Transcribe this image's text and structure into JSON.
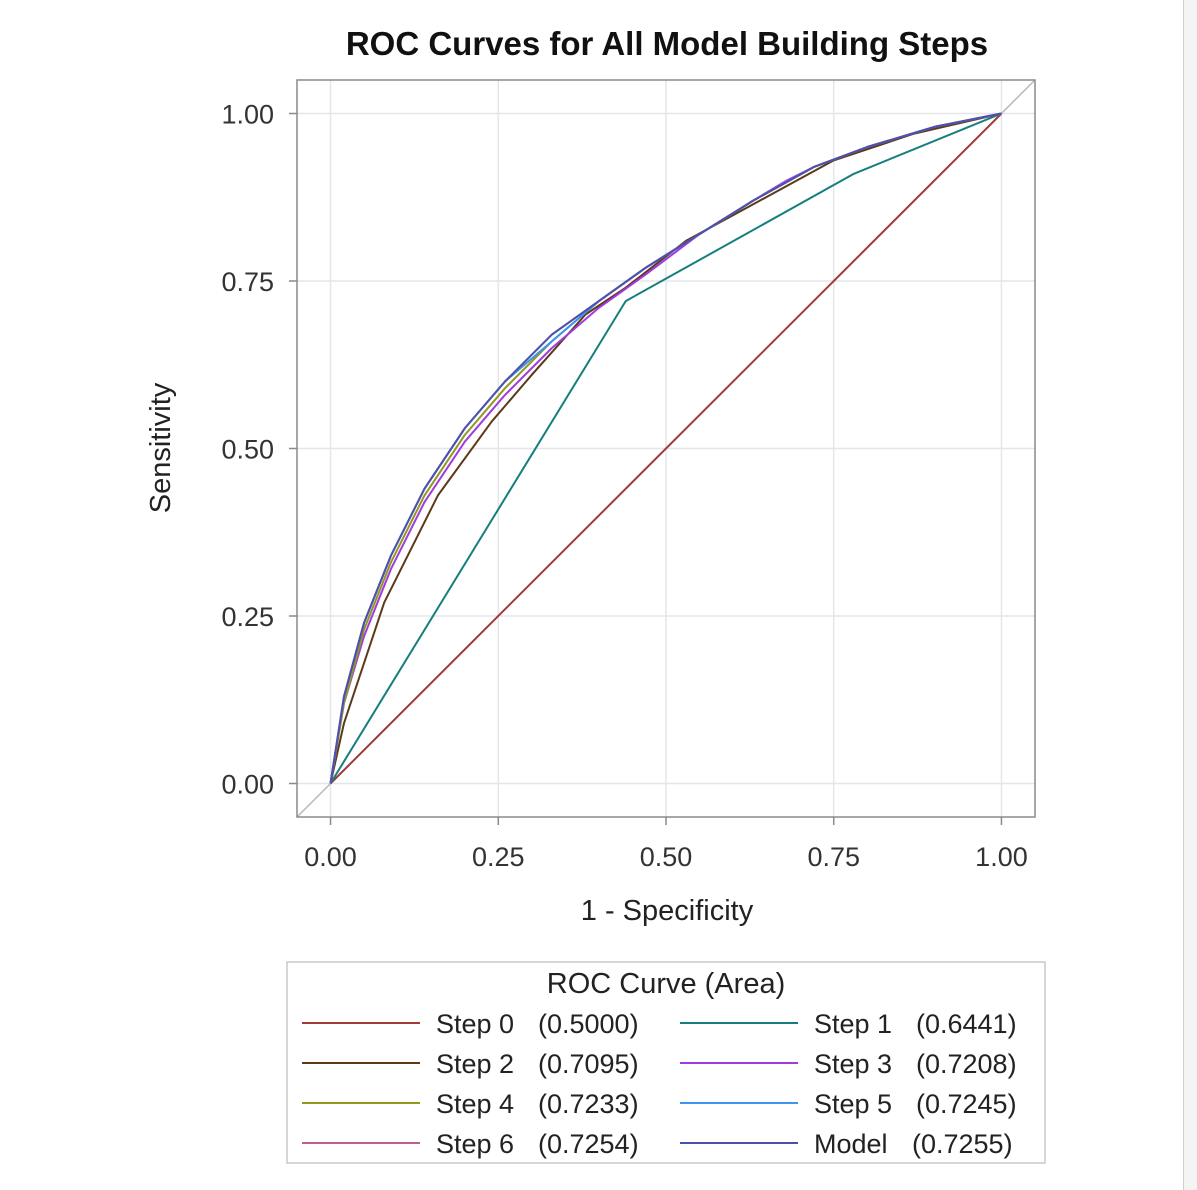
{
  "chart_data": {
    "type": "line",
    "title": "ROC Curves for All Model Building Steps",
    "xlabel": "1 - Specificity",
    "ylabel": "Sensitivity",
    "xlim": [
      -0.05,
      1.05
    ],
    "ylim": [
      -0.05,
      1.05
    ],
    "x_ticks": [
      "0.00",
      "0.25",
      "0.50",
      "0.75",
      "1.00"
    ],
    "y_ticks": [
      "0.00",
      "0.25",
      "0.50",
      "0.75",
      "1.00"
    ],
    "grid": true,
    "reference_line": {
      "x": [
        -0.05,
        1.05
      ],
      "y": [
        -0.05,
        1.05
      ],
      "color": "#b8b8b8"
    },
    "legend_title": "ROC Curve (Area)",
    "legend_position": "bottom",
    "series": [
      {
        "name": "Step 0",
        "area": "(0.5000)",
        "color": "#a23a3a",
        "x": [
          0,
          1
        ],
        "y": [
          0,
          1
        ]
      },
      {
        "name": "Step 1",
        "area": "(0.6441)",
        "color": "#167e7e",
        "x": [
          0,
          0.44,
          0.78,
          1
        ],
        "y": [
          0,
          0.72,
          0.91,
          1
        ]
      },
      {
        "name": "Step 2",
        "area": "(0.7095)",
        "color": "#5c3a18",
        "x": [
          0,
          0.02,
          0.08,
          0.16,
          0.24,
          0.3,
          0.38,
          0.44,
          0.53,
          0.64,
          0.75,
          0.87,
          1
        ],
        "y": [
          0,
          0.09,
          0.27,
          0.43,
          0.54,
          0.61,
          0.7,
          0.74,
          0.81,
          0.87,
          0.93,
          0.97,
          1
        ]
      },
      {
        "name": "Step 3",
        "area": "(0.7208)",
        "color": "#a23ae0",
        "x": [
          0,
          0.02,
          0.05,
          0.09,
          0.14,
          0.2,
          0.26,
          0.33,
          0.4,
          0.47,
          0.55,
          0.63,
          0.68,
          0.72,
          0.8,
          0.9,
          1
        ],
        "y": [
          0,
          0.12,
          0.22,
          0.32,
          0.42,
          0.51,
          0.58,
          0.65,
          0.71,
          0.76,
          0.82,
          0.87,
          0.9,
          0.92,
          0.95,
          0.98,
          1
        ]
      },
      {
        "name": "Step 4",
        "area": "(0.7233)",
        "color": "#8f9a1a",
        "x": [
          0,
          0.02,
          0.05,
          0.09,
          0.14,
          0.2,
          0.26,
          0.33,
          0.4,
          0.47,
          0.55,
          0.63,
          0.72,
          0.8,
          0.9,
          1
        ],
        "y": [
          0,
          0.12,
          0.23,
          0.33,
          0.43,
          0.52,
          0.59,
          0.66,
          0.72,
          0.77,
          0.82,
          0.87,
          0.92,
          0.95,
          0.98,
          1
        ]
      },
      {
        "name": "Step 5",
        "area": "(0.7245)",
        "color": "#3a96ee",
        "x": [
          0,
          0.02,
          0.05,
          0.09,
          0.14,
          0.2,
          0.26,
          0.33,
          0.4,
          0.47,
          0.55,
          0.63,
          0.72,
          0.8,
          0.9,
          1
        ],
        "y": [
          0,
          0.13,
          0.24,
          0.34,
          0.44,
          0.53,
          0.6,
          0.66,
          0.72,
          0.77,
          0.82,
          0.87,
          0.92,
          0.95,
          0.98,
          1
        ]
      },
      {
        "name": "Step 6",
        "area": "(0.7254)",
        "color": "#c25c8c",
        "x": [
          0,
          0.02,
          0.05,
          0.09,
          0.14,
          0.2,
          0.26,
          0.33,
          0.4,
          0.47,
          0.55,
          0.63,
          0.72,
          0.8,
          0.9,
          1
        ],
        "y": [
          0,
          0.13,
          0.24,
          0.34,
          0.44,
          0.53,
          0.6,
          0.67,
          0.72,
          0.77,
          0.82,
          0.87,
          0.92,
          0.95,
          0.98,
          1
        ]
      },
      {
        "name": "Model",
        "area": "(0.7255)",
        "color": "#4a52b0",
        "x": [
          0,
          0.02,
          0.05,
          0.09,
          0.14,
          0.2,
          0.26,
          0.33,
          0.4,
          0.47,
          0.55,
          0.63,
          0.72,
          0.8,
          0.9,
          1
        ],
        "y": [
          0,
          0.13,
          0.24,
          0.34,
          0.44,
          0.53,
          0.6,
          0.67,
          0.72,
          0.77,
          0.82,
          0.87,
          0.92,
          0.95,
          0.98,
          1
        ]
      }
    ]
  }
}
